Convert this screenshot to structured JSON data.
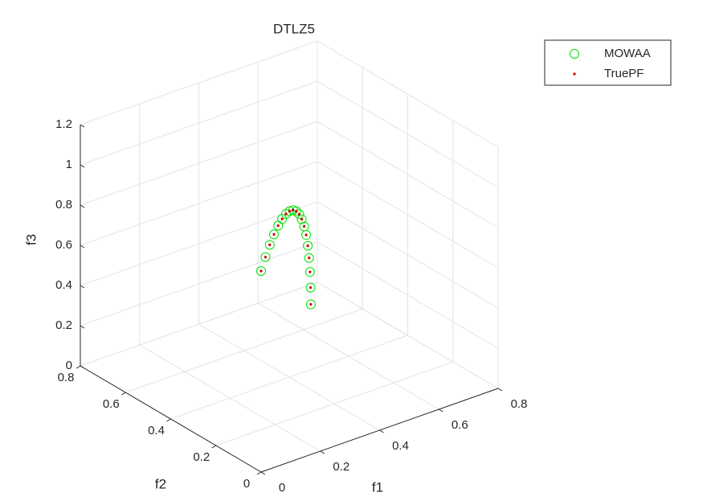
{
  "chart_data": {
    "type": "scatter3d",
    "title": "DTLZ5",
    "xlabel": "f1",
    "ylabel": "f2",
    "zlabel": "f3",
    "xlim": [
      0,
      0.8
    ],
    "ylim": [
      0,
      0.8
    ],
    "zlim": [
      0,
      1.2
    ],
    "xticks": [
      0,
      0.2,
      0.4,
      0.6,
      0.8
    ],
    "yticks": [
      0,
      0.2,
      0.4,
      0.6,
      0.8
    ],
    "zticks": [
      0,
      0.2,
      0.4,
      0.6,
      0.8,
      1,
      1.2
    ],
    "grid": true,
    "legend": "northeast",
    "series": [
      {
        "name": "MOWAA",
        "color": "#00e000",
        "marker": "circle",
        "x": [
          0.707,
          0.704,
          0.696,
          0.683,
          0.664,
          0.641,
          0.612,
          0.579,
          0.542,
          0.5,
          0.455,
          0.406,
          0.354,
          0.299,
          0.242,
          0.183,
          0.123,
          0.062,
          0
        ],
        "y": [
          0.707,
          0.704,
          0.696,
          0.683,
          0.664,
          0.641,
          0.612,
          0.579,
          0.542,
          0.5,
          0.455,
          0.406,
          0.354,
          0.299,
          0.242,
          0.183,
          0.123,
          0.062,
          0
        ],
        "z": [
          0,
          0.087,
          0.174,
          0.259,
          0.342,
          0.423,
          0.5,
          0.574,
          0.643,
          0.707,
          0.766,
          0.819,
          0.866,
          0.906,
          0.94,
          0.966,
          0.985,
          0.996,
          1
        ]
      },
      {
        "name": "TruePF",
        "color": "#cc0000",
        "marker": "dot",
        "x": [
          0.707,
          0.704,
          0.696,
          0.683,
          0.664,
          0.641,
          0.612,
          0.579,
          0.542,
          0.5,
          0.455,
          0.406,
          0.354,
          0.299,
          0.242,
          0.183,
          0.123,
          0.062,
          0
        ],
        "y": [
          0.707,
          0.704,
          0.696,
          0.683,
          0.664,
          0.641,
          0.612,
          0.579,
          0.542,
          0.5,
          0.455,
          0.406,
          0.354,
          0.299,
          0.242,
          0.183,
          0.123,
          0.062,
          0
        ],
        "z": [
          0,
          0.087,
          0.174,
          0.259,
          0.342,
          0.423,
          0.5,
          0.574,
          0.643,
          0.707,
          0.766,
          0.819,
          0.866,
          0.906,
          0.94,
          0.966,
          0.985,
          0.996,
          1
        ]
      }
    ]
  }
}
